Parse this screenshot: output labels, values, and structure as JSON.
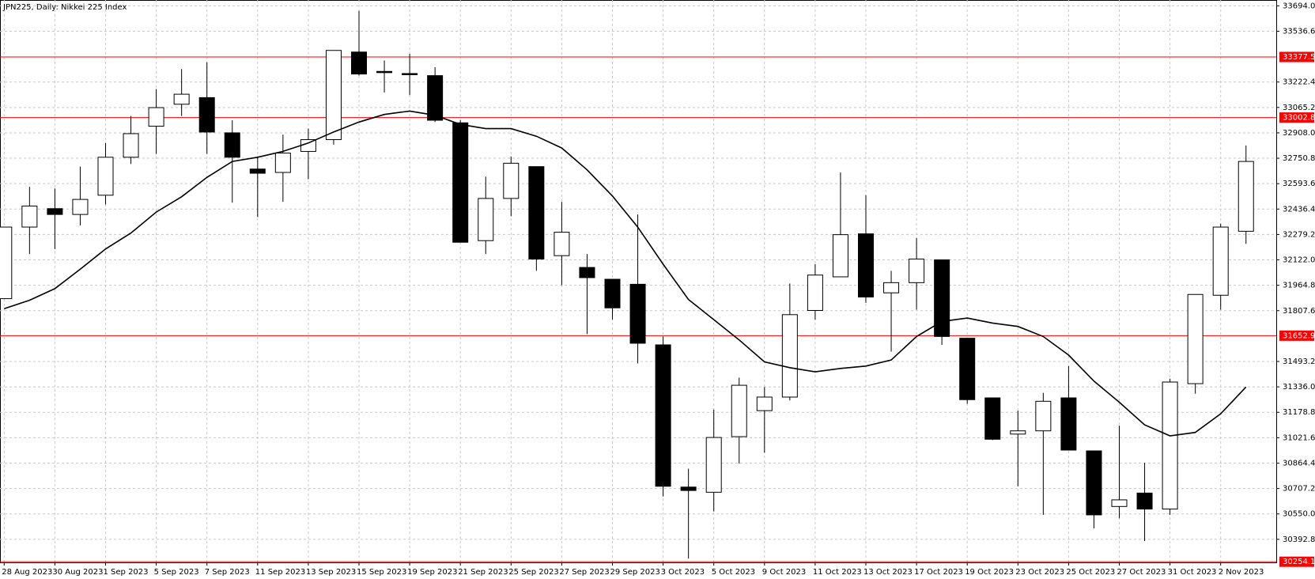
{
  "chart_data": {
    "type": "candlestick",
    "title": "JPN225, Daily:  Nikkei 225 Index",
    "categories": [
      "28 Aug 2023",
      null,
      "30 Aug 2023",
      null,
      "1 Sep 2023",
      null,
      "5 Sep 2023",
      null,
      "7 Sep 2023",
      null,
      "11 Sep 2023",
      null,
      "13 Sep 2023",
      null,
      "15 Sep 2023",
      null,
      "19 Sep 2023",
      null,
      "21 Sep 2023",
      null,
      "25 Sep 2023",
      null,
      "27 Sep 2023",
      null,
      "29 Sep 2023",
      null,
      "3 Oct 2023",
      null,
      "5 Oct 2023",
      null,
      "9 Oct 2023",
      null,
      "11 Oct 2023",
      null,
      "13 Oct 2023",
      null,
      "17 Oct 2023",
      null,
      "19 Oct 2023",
      null,
      "23 Oct 2023",
      null,
      "25 Oct 2023",
      null,
      "27 Oct 2023",
      null,
      "31 Oct 2023",
      null,
      "2 Nov 2023",
      null
    ],
    "open": [
      31882,
      32325,
      32439,
      32403,
      32522,
      32757,
      32949,
      33085,
      33126,
      32908,
      32684,
      32663,
      32793,
      32866,
      33408,
      33288,
      33275,
      33262,
      32970,
      32241,
      32502,
      32699,
      32148,
      32075,
      32002,
      31971,
      31596,
      30716,
      30684,
      31028,
      31189,
      31273,
      31809,
      32017,
      32283,
      31918,
      31981,
      32122,
      31637,
      31268,
      31044,
      31064,
      31268,
      30940,
      30596,
      30679,
      30580,
      31356,
      31903,
      32299
    ],
    "high": [
      32325,
      32574,
      32564,
      32699,
      32845,
      33012,
      33179,
      33303,
      33345,
      32986,
      32762,
      32897,
      32934,
      33418,
      33663,
      33356,
      33397,
      33314,
      32986,
      32637,
      32762,
      32699,
      32481,
      32158,
      32002,
      32403,
      31648,
      30830,
      31195,
      31393,
      31335,
      31976,
      32096,
      32663,
      32522,
      32054,
      32257,
      32122,
      31637,
      31268,
      31189,
      31299,
      31465,
      30940,
      31096,
      30866,
      31387,
      31908,
      32345,
      32830
    ],
    "low": [
      31882,
      32158,
      32189,
      32335,
      32465,
      32715,
      32778,
      33012,
      32778,
      32476,
      32387,
      32481,
      32621,
      32835,
      33262,
      33158,
      33142,
      32975,
      32231,
      32158,
      32392,
      32054,
      31965,
      31663,
      31752,
      31481,
      30658,
      30273,
      30565,
      30861,
      30929,
      31252,
      31752,
      32017,
      31856,
      31554,
      31814,
      31596,
      31231,
      31007,
      30721,
      30544,
      30945,
      30460,
      30523,
      30382,
      30544,
      31294,
      31814,
      32221
    ],
    "close": [
      32325,
      32455,
      32403,
      32496,
      32757,
      32903,
      33064,
      33147,
      32913,
      32757,
      32658,
      32783,
      32866,
      33418,
      33272,
      33283,
      33270,
      32986,
      32231,
      32502,
      32720,
      32127,
      32293,
      32012,
      31825,
      31606,
      30721,
      30695,
      31023,
      31346,
      31273,
      31783,
      32028,
      32278,
      31892,
      31981,
      32127,
      31648,
      31257,
      31012,
      31064,
      31247,
      30945,
      30544,
      30637,
      30580,
      31366,
      31908,
      32325,
      32731
    ],
    "overlay": {
      "color": "#000000",
      "values": [
        31820,
        31872,
        31944,
        32064,
        32189,
        32288,
        32418,
        32512,
        32632,
        32731,
        32757,
        32793,
        32845,
        32913,
        32975,
        33022,
        33043,
        33017,
        32960,
        32934,
        32934,
        32887,
        32814,
        32679,
        32517,
        32325,
        32095,
        31877,
        31752,
        31627,
        31491,
        31455,
        31429,
        31450,
        31465,
        31502,
        31648,
        31741,
        31762,
        31731,
        31710,
        31648,
        31533,
        31372,
        31241,
        31101,
        31033,
        31054,
        31169,
        31335
      ]
    },
    "ylim": [
      30250,
      33730
    ],
    "yticks": [
      {
        "value": 33694,
        "label": "33694.0"
      },
      33536.6,
      33222.4,
      33065.2,
      {
        "value": 32908,
        "label": "32908.0"
      },
      32750.8,
      32593.6,
      32436.4,
      32279.2,
      {
        "value": 32122,
        "label": "32122.0"
      },
      31964.8,
      31807.6,
      31493.2,
      {
        "value": 31336,
        "label": "31336.0"
      },
      31178.8,
      31021.6,
      30864.4,
      30707.2,
      {
        "value": 30550,
        "label": "30550.0"
      },
      30392.8
    ],
    "levels": [
      33377.5,
      33002.8,
      31652.9,
      30254.1
    ],
    "level_color": "#ff0000",
    "grid": true
  }
}
